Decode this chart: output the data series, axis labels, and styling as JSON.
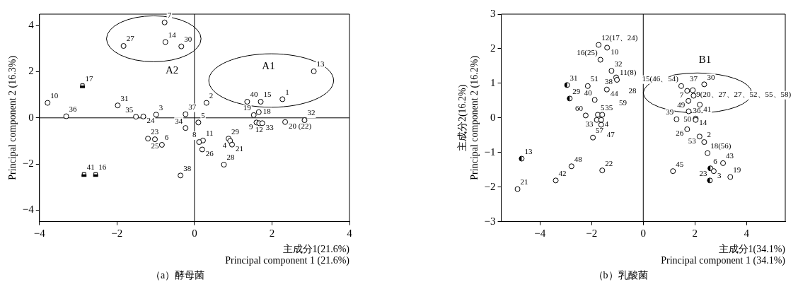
{
  "chart_data": [
    {
      "type": "scatter",
      "title": "（a）酵母菌",
      "xlabel": "主成分1(21.6%)\nPrincipal component 1 (21.6%)",
      "ylabel": "Principal component 2 (16.3%)",
      "xlim": [
        -4,
        4
      ],
      "ylim": [
        -4.5,
        4.5
      ],
      "xticks": [
        -4,
        -2,
        0,
        2,
        4
      ],
      "yticks": [
        -4,
        -2,
        0,
        2,
        4
      ],
      "grid": false,
      "ref_lines": [
        {
          "axis": "x",
          "value": 0
        },
        {
          "axis": "y",
          "value": 0
        }
      ],
      "annotations": [
        "A1",
        "A2",
        {
          "text": "7",
          "x": -0.77,
          "y": 4.14
        },
        {
          "text": "14",
          "x": -0.75,
          "y": 3.29
        },
        {
          "text": "30",
          "x": -0.34,
          "y": 3.1
        },
        {
          "text": "27",
          "x": -1.83,
          "y": 3.12
        },
        {
          "text": "10",
          "x": -3.79,
          "y": 0.65
        },
        {
          "text": "36",
          "x": -3.31,
          "y": 0.07
        },
        {
          "text": "31",
          "x": -1.98,
          "y": 0.54
        },
        {
          "text": "35",
          "x": -1.51,
          "y": 0.05
        },
        {
          "text": "24",
          "x": -1.32,
          "y": 0.06
        },
        {
          "text": "3",
          "x": -0.99,
          "y": 0.14
        },
        {
          "text": "37",
          "x": -0.23,
          "y": 0.16
        },
        {
          "text": "5",
          "x": 0.1,
          "y": -0.2
        },
        {
          "text": "34",
          "x": -0.23,
          "y": -0.44
        },
        {
          "text": "23",
          "x": -1.2,
          "y": -0.9
        },
        {
          "text": "25",
          "x": -1.02,
          "y": -0.93
        },
        {
          "text": "6",
          "x": -0.84,
          "y": -1.17
        },
        {
          "text": "38",
          "x": -0.36,
          "y": -2.5
        },
        {
          "text": "13",
          "x": 3.08,
          "y": 2.02
        },
        {
          "text": "40",
          "x": 1.36,
          "y": 0.7
        },
        {
          "text": "15",
          "x": 1.71,
          "y": 0.7
        },
        {
          "text": "1",
          "x": 2.27,
          "y": 0.81
        },
        {
          "text": "2",
          "x": 0.31,
          "y": 0.65
        },
        {
          "text": "18",
          "x": 1.66,
          "y": 0.25
        },
        {
          "text": "19",
          "x": 1.53,
          "y": 0.12
        },
        {
          "text": "9",
          "x": 1.6,
          "y": -0.2
        },
        {
          "text": "12",
          "x": 1.67,
          "y": -0.23
        },
        {
          "text": "33",
          "x": 1.75,
          "y": -0.23
        },
        {
          "text": "20 (22)",
          "x": 2.34,
          "y": -0.18
        },
        {
          "text": "32",
          "x": 2.84,
          "y": -0.1
        },
        {
          "text": "11",
          "x": 0.22,
          "y": -0.98
        },
        {
          "text": "8",
          "x": 0.12,
          "y": -1.05
        },
        {
          "text": "26",
          "x": 0.2,
          "y": -1.37
        },
        {
          "text": "29",
          "x": 0.88,
          "y": -0.9
        },
        {
          "text": "4",
          "x": 0.92,
          "y": -1.0
        },
        {
          "text": "21",
          "x": 0.97,
          "y": -1.16
        },
        {
          "text": "28",
          "x": 0.76,
          "y": -2.03
        },
        {
          "text": "17",
          "x": -2.89,
          "y": 1.4
        },
        {
          "text": "41",
          "x": -2.85,
          "y": -2.45
        },
        {
          "text": "16",
          "x": -2.55,
          "y": -2.45
        }
      ],
      "series": [
        {
          "color": "#000000",
          "marker": "circle",
          "x": [
            -0.77,
            -0.75,
            -0.34,
            -1.83,
            -3.79,
            -3.31,
            -1.98,
            -1.51,
            -1.32,
            -0.99,
            -0.23,
            0.1,
            -0.23,
            -1.2,
            -1.02,
            -0.84,
            -0.36,
            3.08,
            1.36,
            1.71,
            2.27,
            0.31,
            1.66,
            1.53,
            1.6,
            1.67,
            1.75,
            2.34,
            2.84,
            0.22,
            0.12,
            0.2,
            0.88,
            0.92,
            0.97,
            0.76
          ],
          "values": [
            4.14,
            3.29,
            3.1,
            3.12,
            0.65,
            0.07,
            0.54,
            0.05,
            0.06,
            0.14,
            0.16,
            -0.2,
            -0.44,
            -0.9,
            -0.93,
            -1.17,
            -2.5,
            2.02,
            0.7,
            0.7,
            0.81,
            0.65,
            0.25,
            0.12,
            -0.2,
            -0.23,
            -0.23,
            -0.18,
            -0.1,
            -0.98,
            -1.05,
            -1.37,
            -0.9,
            -1.0,
            -1.16,
            -2.03
          ]
        },
        {
          "color": "#000000",
          "marker": "square",
          "x": [
            -2.89,
            -2.85,
            -2.55
          ],
          "values": [
            1.4,
            -2.45,
            -2.45
          ]
        }
      ]
    },
    {
      "type": "scatter",
      "title": "（b）乳酸菌",
      "xlabel": "主成分1(34.1%)\nPrincipal component 1 (34.1%)",
      "ylabel": "主成分2(16.2%)\nPrincipal component 2 (16.2%)",
      "xlim": [
        -5.5,
        5.5
      ],
      "ylim": [
        -3,
        3
      ],
      "xticks": [
        -4,
        -2,
        0,
        2,
        4
      ],
      "yticks": [
        -3,
        -2,
        -1,
        0,
        1,
        2,
        3
      ],
      "grid": false,
      "ref_lines": [
        {
          "axis": "x",
          "value": 0
        }
      ],
      "annotations": [
        "B1",
        "28",
        "59",
        {
          "text": "12(17、24)",
          "x": -1.73,
          "y": 2.11
        },
        {
          "text": "10",
          "x": -1.4,
          "y": 2.03
        },
        {
          "text": "16(25)",
          "x": -1.66,
          "y": 1.68
        },
        {
          "text": "32",
          "x": -1.23,
          "y": 1.36
        },
        {
          "text": "38",
          "x": -1.05,
          "y": 1.17
        },
        {
          "text": "11(8)",
          "x": -1.02,
          "y": 1.1
        },
        {
          "text": "51",
          "x": -2.15,
          "y": 0.92
        },
        {
          "text": "44",
          "x": -1.41,
          "y": 0.82
        },
        {
          "text": "40",
          "x": -1.88,
          "y": 0.52
        },
        {
          "text": "60",
          "x": -2.23,
          "y": 0.07
        },
        {
          "text": "5",
          "x": -1.76,
          "y": 0.09
        },
        {
          "text": "35",
          "x": -1.59,
          "y": 0.09
        },
        {
          "text": "33",
          "x": -1.8,
          "y": -0.06
        },
        {
          "text": "4",
          "x": -1.63,
          "y": -0.06
        },
        {
          "text": "47",
          "x": -1.63,
          "y": -0.2
        },
        {
          "text": "57",
          "x": -1.95,
          "y": -0.57
        },
        {
          "text": "48",
          "x": -2.78,
          "y": -1.4
        },
        {
          "text": "22",
          "x": -1.59,
          "y": -1.52
        },
        {
          "text": "42",
          "x": -3.39,
          "y": -1.81
        },
        {
          "text": "21",
          "x": -4.87,
          "y": -2.06
        },
        {
          "text": "15(46、54)",
          "x": 1.47,
          "y": 0.92
        },
        {
          "text": "30",
          "x": 2.36,
          "y": 0.97
        },
        {
          "text": "7",
          "x": 1.7,
          "y": 0.78
        },
        {
          "text": "9(20、27、27、52、55、58)",
          "x": 1.92,
          "y": 0.8
        },
        {
          "text": "37",
          "x": 1.95,
          "y": 0.64
        },
        {
          "text": "49",
          "x": 1.75,
          "y": 0.49
        },
        {
          "text": "41",
          "x": 2.19,
          "y": 0.38
        },
        {
          "text": "36",
          "x": 1.76,
          "y": 0.19
        },
        {
          "text": "39",
          "x": 1.29,
          "y": -0.04
        },
        {
          "text": "14",
          "x": 2.03,
          "y": -0.02
        },
        {
          "text": "50",
          "x": 2.03,
          "y": -0.06
        },
        {
          "text": "26",
          "x": 1.7,
          "y": -0.33
        },
        {
          "text": "53",
          "x": 2.18,
          "y": -0.54
        },
        {
          "text": "2",
          "x": 2.36,
          "y": -0.7
        },
        {
          "text": "18(56)",
          "x": 2.49,
          "y": -1.02
        },
        {
          "text": "43",
          "x": 3.09,
          "y": -1.31
        },
        {
          "text": "3",
          "x": 2.73,
          "y": -1.54
        },
        {
          "text": "45",
          "x": 1.15,
          "y": -1.54
        },
        {
          "text": "19",
          "x": 3.37,
          "y": -1.71
        },
        {
          "text": "31",
          "x": -2.95,
          "y": 0.95
        },
        {
          "text": "29",
          "x": -2.85,
          "y": 0.56
        },
        {
          "text": "13",
          "x": -4.71,
          "y": -1.18
        },
        {
          "text": "6",
          "x": 2.6,
          "y": -1.46
        },
        {
          "text": "23",
          "x": 2.58,
          "y": -1.81
        }
      ],
      "series": [
        {
          "color": "#000000",
          "marker": "circle",
          "x": [
            -1.73,
            -1.4,
            -1.66,
            -1.23,
            -1.05,
            -1.02,
            -2.15,
            -1.41,
            -1.88,
            -2.23,
            -1.76,
            -1.59,
            -1.8,
            -1.63,
            -1.63,
            -1.95,
            -2.78,
            -1.59,
            -3.39,
            -4.87,
            1.47,
            2.36,
            1.7,
            1.92,
            1.95,
            1.75,
            2.19,
            1.76,
            1.29,
            2.03,
            2.03,
            1.7,
            2.18,
            2.36,
            2.49,
            3.09,
            2.73,
            1.15,
            3.37
          ],
          "values": [
            2.11,
            2.03,
            1.68,
            1.36,
            1.17,
            1.1,
            0.92,
            0.82,
            0.52,
            0.07,
            0.09,
            0.09,
            -0.06,
            -0.06,
            -0.2,
            -0.57,
            -1.4,
            -1.52,
            -1.81,
            -2.06,
            0.92,
            0.97,
            0.78,
            0.8,
            0.64,
            0.49,
            0.38,
            0.19,
            -0.04,
            -0.02,
            -0.06,
            -0.33,
            -0.54,
            -0.7,
            -1.02,
            -1.31,
            -1.54,
            -1.54,
            -1.71
          ]
        },
        {
          "color": "#000000",
          "marker": "circle",
          "x": [
            -2.95,
            -2.85,
            -4.71,
            2.6,
            2.58
          ],
          "values": [
            0.95,
            0.56,
            -1.18,
            -1.46,
            -1.81
          ]
        }
      ]
    }
  ]
}
